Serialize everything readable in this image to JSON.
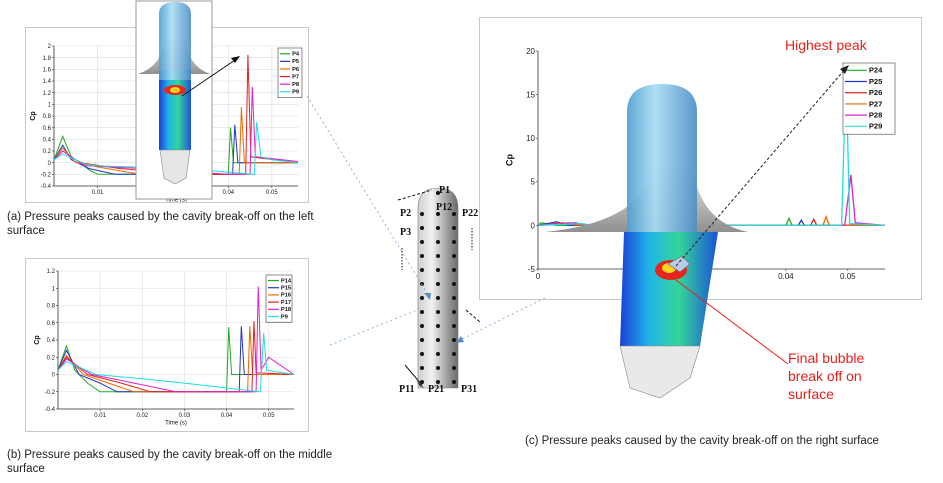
{
  "captions": {
    "a": "(a) Pressure peaks caused by the cavity break-off on the left surface",
    "b": "(b) Pressure peaks caused by the cavity break-off on the middle surface",
    "c": "(c) Pressure peaks caused by the cavity break-off on the right surface"
  },
  "annotations": {
    "highest_peak": "Highest peak",
    "final_bubble": "Final bubble break off on surface"
  },
  "body_labels": [
    "P1",
    "P2",
    "P12",
    "P22",
    "P3",
    "P11",
    "P21",
    "P31"
  ],
  "colors": {
    "annotation_red": "#e8201c",
    "panel_border": "#c8c8c8"
  },
  "chart_data": [
    {
      "type": "line",
      "id": "a",
      "xlabel": "Time (s)",
      "ylabel": "Cp",
      "xlim": [
        0,
        0.056
      ],
      "ylim": [
        -0.4,
        2
      ],
      "xticks": [
        0.01,
        0.04,
        0.05
      ],
      "yticks": [
        -0.4,
        -0.2,
        0,
        0.2,
        0.4,
        0.6,
        0.8,
        1,
        1.2,
        1.4,
        1.6,
        1.8,
        2
      ],
      "grid": true,
      "legend": "top-right",
      "series": [
        {
          "name": "P4",
          "color": "#22aa22",
          "points": [
            [
              0,
              0.05
            ],
            [
              0.002,
              0.45
            ],
            [
              0.004,
              0.1
            ],
            [
              0.006,
              0
            ],
            [
              0.008,
              -0.12
            ],
            [
              0.01,
              -0.2
            ],
            [
              0.04,
              -0.2
            ],
            [
              0.0405,
              0.6
            ],
            [
              0.0412,
              0
            ],
            [
              0.056,
              0
            ]
          ]
        },
        {
          "name": "P5",
          "color": "#2233cc",
          "points": [
            [
              0,
              0.05
            ],
            [
              0.002,
              0.3
            ],
            [
              0.004,
              0.05
            ],
            [
              0.008,
              -0.1
            ],
            [
              0.014,
              -0.2
            ],
            [
              0.041,
              -0.2
            ],
            [
              0.0415,
              0.65
            ],
            [
              0.0422,
              0
            ],
            [
              0.056,
              0
            ]
          ]
        },
        {
          "name": "P6",
          "color": "#ee6a00",
          "points": [
            [
              0,
              0.05
            ],
            [
              0.002,
              0.25
            ],
            [
              0.005,
              0
            ],
            [
              0.012,
              -0.1
            ],
            [
              0.02,
              -0.2
            ],
            [
              0.0425,
              -0.2
            ],
            [
              0.043,
              0.95
            ],
            [
              0.0437,
              0
            ],
            [
              0.056,
              0
            ]
          ]
        },
        {
          "name": "P7",
          "color": "#dd2222",
          "points": [
            [
              0,
              0.05
            ],
            [
              0.002,
              0.2
            ],
            [
              0.006,
              0
            ],
            [
              0.015,
              -0.1
            ],
            [
              0.03,
              -0.2
            ],
            [
              0.044,
              -0.2
            ],
            [
              0.0445,
              1.85
            ],
            [
              0.0452,
              0.1
            ],
            [
              0.056,
              0
            ]
          ]
        },
        {
          "name": "P8",
          "color": "#dd22cc",
          "points": [
            [
              0,
              0.05
            ],
            [
              0.002,
              0.2
            ],
            [
              0.007,
              -0.05
            ],
            [
              0.02,
              -0.1
            ],
            [
              0.04,
              -0.2
            ],
            [
              0.045,
              -0.2
            ],
            [
              0.0455,
              1.3
            ],
            [
              0.0462,
              0.1
            ],
            [
              0.056,
              0.02
            ]
          ]
        },
        {
          "name": "P9",
          "color": "#22dddd",
          "points": [
            [
              0,
              0.05
            ],
            [
              0.002,
              0.15
            ],
            [
              0.008,
              -0.05
            ],
            [
              0.03,
              -0.1
            ],
            [
              0.046,
              -0.2
            ],
            [
              0.0465,
              0.7
            ],
            [
              0.0475,
              0.1
            ],
            [
              0.05,
              0.05
            ],
            [
              0.056,
              0
            ]
          ]
        }
      ]
    },
    {
      "type": "line",
      "id": "b",
      "xlabel": "Time (s)",
      "ylabel": "Cp",
      "xlim": [
        0,
        0.056
      ],
      "ylim": [
        -0.4,
        1.2
      ],
      "xticks": [
        0.01,
        0.02,
        0.03,
        0.04,
        0.05
      ],
      "yticks": [
        -0.4,
        -0.2,
        0,
        0.2,
        0.4,
        0.6,
        0.8,
        1,
        1.2
      ],
      "grid": true,
      "legend": "top-right",
      "series": [
        {
          "name": "P14",
          "color": "#22aa22",
          "points": [
            [
              0,
              0.05
            ],
            [
              0.002,
              0.33
            ],
            [
              0.004,
              0.05
            ],
            [
              0.007,
              -0.1
            ],
            [
              0.01,
              -0.2
            ],
            [
              0.04,
              -0.2
            ],
            [
              0.0405,
              0.55
            ],
            [
              0.0412,
              0
            ],
            [
              0.056,
              0
            ]
          ]
        },
        {
          "name": "P15",
          "color": "#2233cc",
          "points": [
            [
              0,
              0.05
            ],
            [
              0.002,
              0.28
            ],
            [
              0.005,
              0
            ],
            [
              0.01,
              -0.1
            ],
            [
              0.014,
              -0.2
            ],
            [
              0.043,
              -0.2
            ],
            [
              0.0435,
              0.56
            ],
            [
              0.0442,
              0
            ],
            [
              0.056,
              0
            ]
          ]
        },
        {
          "name": "P16",
          "color": "#ee6a00",
          "points": [
            [
              0,
              0.05
            ],
            [
              0.002,
              0.22
            ],
            [
              0.006,
              0
            ],
            [
              0.012,
              -0.1
            ],
            [
              0.018,
              -0.2
            ],
            [
              0.045,
              -0.2
            ],
            [
              0.0455,
              0.56
            ],
            [
              0.0462,
              0
            ],
            [
              0.056,
              0
            ]
          ]
        },
        {
          "name": "P17",
          "color": "#dd2222",
          "points": [
            [
              0,
              0.05
            ],
            [
              0.002,
              0.2
            ],
            [
              0.007,
              0
            ],
            [
              0.015,
              -0.1
            ],
            [
              0.022,
              -0.2
            ],
            [
              0.046,
              -0.2
            ],
            [
              0.0465,
              0.62
            ],
            [
              0.047,
              0.02
            ],
            [
              0.056,
              0
            ]
          ]
        },
        {
          "name": "P18",
          "color": "#dd22cc",
          "points": [
            [
              0,
              0.05
            ],
            [
              0.002,
              0.18
            ],
            [
              0.008,
              0
            ],
            [
              0.018,
              -0.1
            ],
            [
              0.028,
              -0.2
            ],
            [
              0.047,
              -0.2
            ],
            [
              0.0475,
              1.02
            ],
            [
              0.0482,
              0.05
            ],
            [
              0.05,
              0.2
            ],
            [
              0.056,
              0
            ]
          ]
        },
        {
          "name": "P9",
          "color": "#22dddd",
          "points": [
            [
              0,
              0.05
            ],
            [
              0.002,
              0.15
            ],
            [
              0.009,
              0
            ],
            [
              0.02,
              -0.05
            ],
            [
              0.03,
              -0.1
            ],
            [
              0.048,
              -0.2
            ],
            [
              0.0488,
              0.48
            ],
            [
              0.0495,
              0.05
            ],
            [
              0.056,
              0
            ]
          ]
        }
      ]
    },
    {
      "type": "line",
      "id": "c",
      "xlabel": "",
      "ylabel": "Cp",
      "xlim": [
        0,
        0.056
      ],
      "ylim": [
        -5,
        20
      ],
      "xticks": [
        0,
        0.04,
        0.05
      ],
      "yticks": [
        -5,
        0,
        5,
        10,
        15,
        20
      ],
      "grid": false,
      "legend": "top-right",
      "series": [
        {
          "name": "P24",
          "color": "#22aa22",
          "points": [
            [
              0,
              0
            ],
            [
              0.0005,
              0.3
            ],
            [
              0.003,
              0
            ],
            [
              0.04,
              0
            ],
            [
              0.0405,
              0.8
            ],
            [
              0.041,
              0
            ],
            [
              0.056,
              0
            ]
          ]
        },
        {
          "name": "P25",
          "color": "#2233cc",
          "points": [
            [
              0,
              0
            ],
            [
              0.003,
              0.4
            ],
            [
              0.005,
              0
            ],
            [
              0.042,
              0
            ],
            [
              0.0425,
              0.6
            ],
            [
              0.043,
              0
            ],
            [
              0.056,
              0
            ]
          ]
        },
        {
          "name": "P26",
          "color": "#dd2222",
          "points": [
            [
              0,
              0
            ],
            [
              0.004,
              0.3
            ],
            [
              0.006,
              0
            ],
            [
              0.044,
              0
            ],
            [
              0.0445,
              0.7
            ],
            [
              0.045,
              0
            ],
            [
              0.056,
              0
            ]
          ]
        },
        {
          "name": "P27",
          "color": "#ee6a00",
          "points": [
            [
              0,
              0
            ],
            [
              0.005,
              0.3
            ],
            [
              0.007,
              0
            ],
            [
              0.046,
              0
            ],
            [
              0.0465,
              1
            ],
            [
              0.047,
              0
            ],
            [
              0.056,
              0
            ]
          ]
        },
        {
          "name": "P28",
          "color": "#dd22cc",
          "points": [
            [
              0,
              0
            ],
            [
              0.006,
              0.3
            ],
            [
              0.008,
              0
            ],
            [
              0.0495,
              0
            ],
            [
              0.0505,
              5.8
            ],
            [
              0.0512,
              0.3
            ],
            [
              0.056,
              0
            ]
          ]
        },
        {
          "name": "P29",
          "color": "#22dddd",
          "points": [
            [
              0,
              0
            ],
            [
              0.007,
              0.2
            ],
            [
              0.009,
              0
            ],
            [
              0.049,
              0
            ],
            [
              0.0497,
              17.8
            ],
            [
              0.0503,
              0.2
            ],
            [
              0.056,
              0
            ]
          ]
        }
      ]
    }
  ]
}
